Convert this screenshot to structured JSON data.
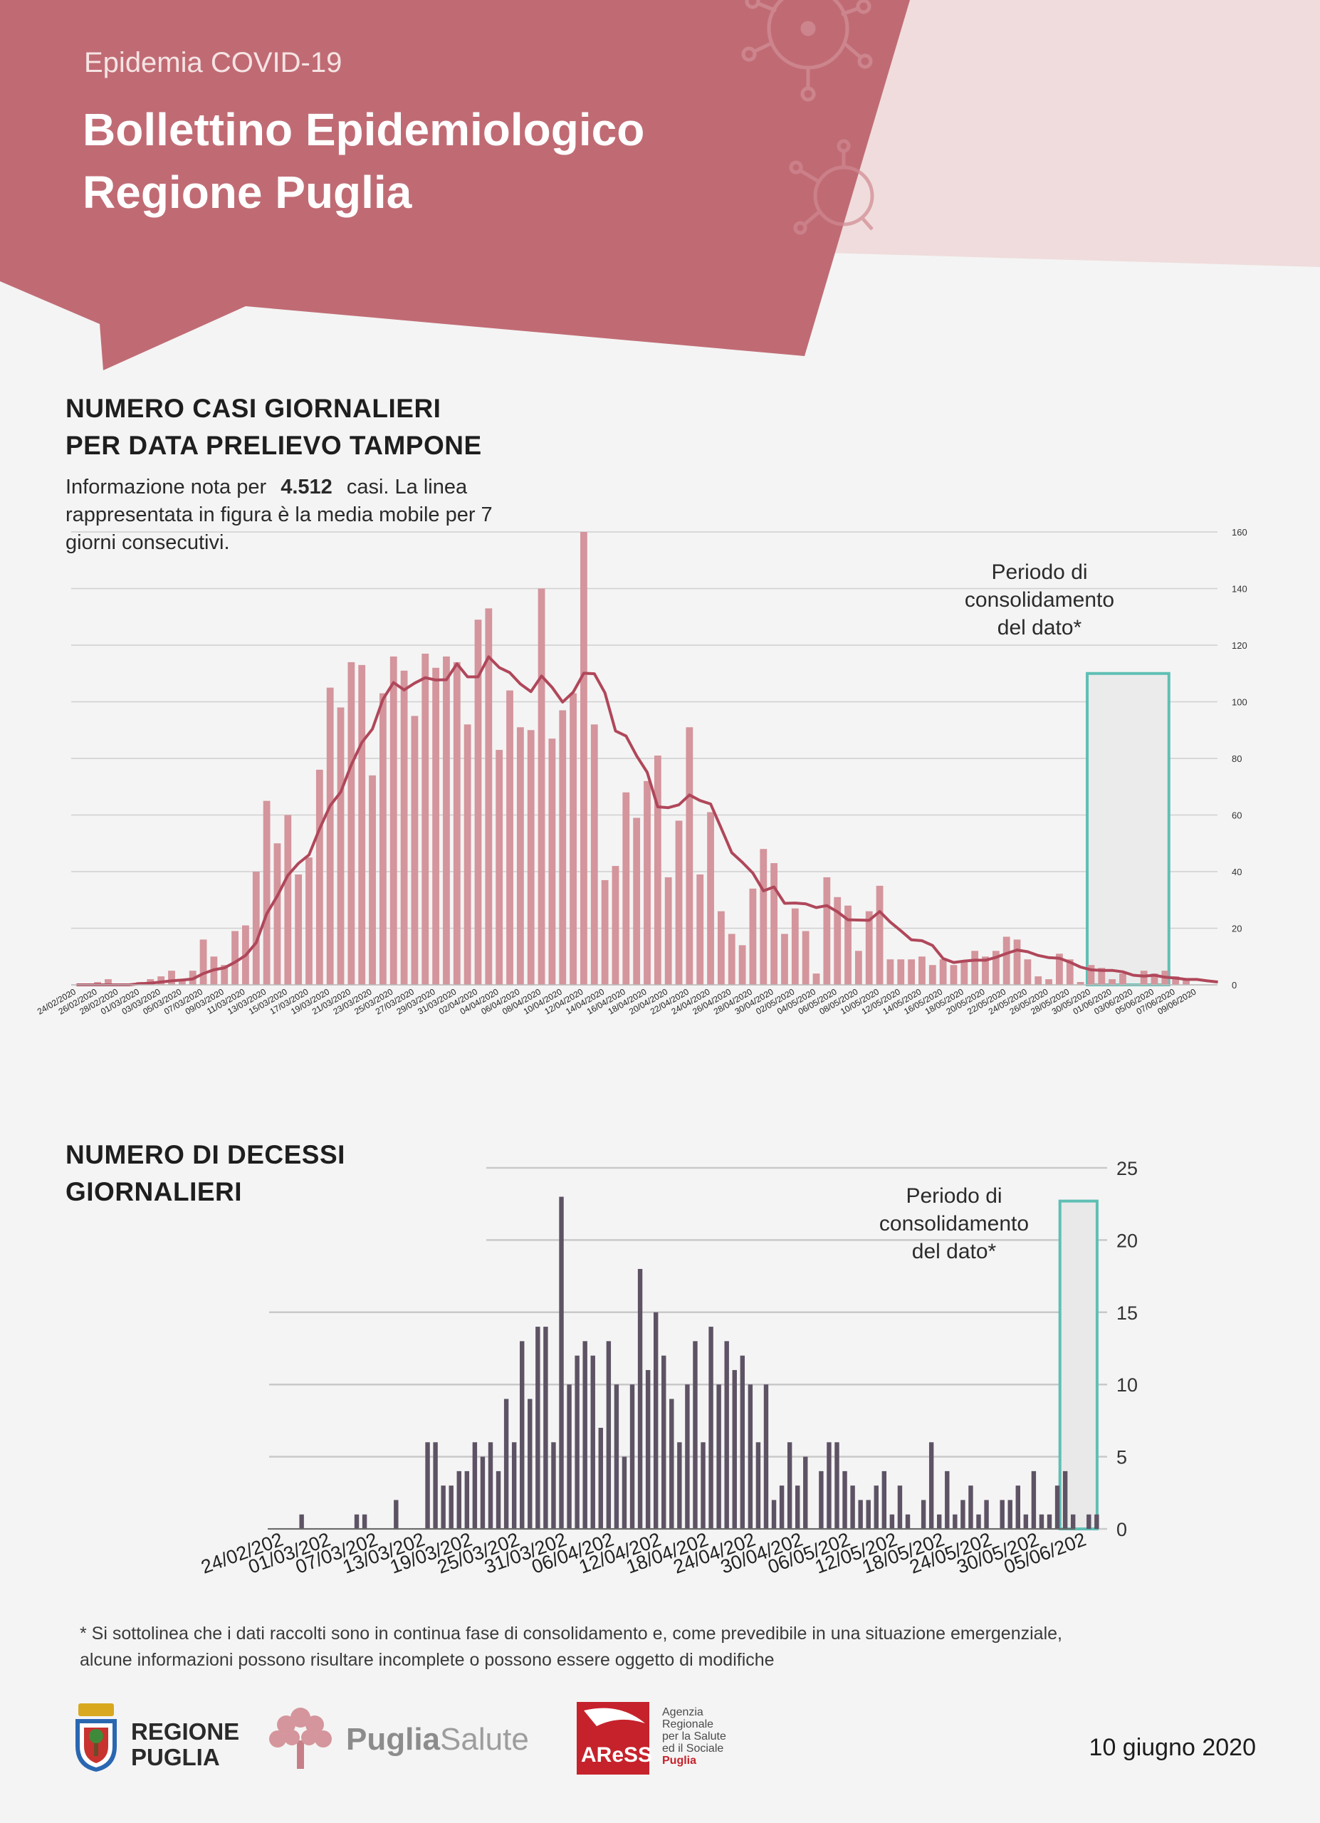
{
  "header": {
    "supertitle": "Epidemia COVID-19",
    "title_line1": "Bollettino Epidemiologico",
    "title_line2": "Regione Puglia"
  },
  "cases_section": {
    "title_line1": "NUMERO CASI GIORNALIERI",
    "title_line2": "PER DATA PRELIEVO TAMPONE",
    "desc_before": "Informazione nota per",
    "desc_number": "4.512",
    "desc_after": "casi. La linea",
    "desc_line2": "rappresentata in figura è la media mobile per 7",
    "desc_line3": "giorni consecutivi.",
    "annotation_line1": "Periodo di",
    "annotation_line2": "consolidamento",
    "annotation_line3": "del dato*"
  },
  "deaths_section": {
    "title_line1": "NUMERO DI DECESSI",
    "title_line2": "GIORNALIERI",
    "annotation_line1": "Periodo di",
    "annotation_line2": "consolidamento",
    "annotation_line3": "del dato*"
  },
  "footnote": {
    "line1": "* Si sottolinea che i dati raccolti sono in continua fase di consolidamento e, come prevedibile in una situazione emergenziale,",
    "line2": "alcune informazioni possono risultare incomplete o possono essere oggetto di modifiche"
  },
  "logos": {
    "regione_line1": "REGIONE",
    "regione_line2": "PUGLIA",
    "puglia": "Puglia",
    "salute": "Salute",
    "aress": "AReSS",
    "agency_line1": "Agenzia",
    "agency_line2": "Regionale",
    "agency_line3": "per la Salute",
    "agency_line4": "ed il Sociale",
    "agency_line5": "Puglia"
  },
  "date": "10 giugno 2020",
  "colors": {
    "header": "#c06b74",
    "header_light": "#f0dcdc",
    "cases_bar": "#d4959c",
    "moving_average": "#b0475a",
    "deaths_bar": "#5d5364",
    "consolidation_box": "#5fbfb4"
  },
  "chart_data": [
    {
      "type": "bar",
      "y_axis_position": "right",
      "ylim": [
        0,
        160
      ],
      "y_ticks": [
        0,
        20,
        40,
        60,
        80,
        100,
        120,
        140,
        160
      ],
      "x_tick_labels": [
        "24/02/2020",
        "26/02/2020",
        "28/02/2020",
        "01/03/2020",
        "03/03/2020",
        "05/03/2020",
        "07/03/2020",
        "09/03/2020",
        "11/03/2020",
        "13/03/2020",
        "15/03/2020",
        "17/03/2020",
        "19/03/2020",
        "21/03/2020",
        "23/03/2020",
        "25/03/2020",
        "27/03/2020",
        "29/03/2020",
        "31/03/2020",
        "02/04/2020",
        "04/04/2020",
        "06/04/2020",
        "08/04/2020",
        "10/04/2020",
        "12/04/2020",
        "14/04/2020",
        "16/04/2020",
        "18/04/2020",
        "20/04/2020",
        "22/04/2020",
        "24/04/2020",
        "26/04/2020",
        "28/04/2020",
        "30/04/2020",
        "02/05/2020",
        "04/05/2020",
        "06/05/2020",
        "08/05/2020",
        "10/05/2020",
        "12/05/2020",
        "14/05/2020",
        "16/05/2020",
        "18/05/2020",
        "20/05/2020",
        "22/05/2020",
        "24/05/2020",
        "26/05/2020",
        "28/05/2020",
        "30/05/2020",
        "01/06/2020",
        "03/06/2020",
        "05/06/2020",
        "07/06/2020",
        "09/06/2020"
      ],
      "series": [
        {
          "kind": "bar",
          "values": [
            0,
            0,
            1,
            2,
            0,
            0,
            1,
            2,
            3,
            5,
            2,
            5,
            16,
            10,
            7,
            19,
            21,
            40,
            65,
            50,
            60,
            39,
            45,
            76,
            105,
            98,
            114,
            113,
            74,
            103,
            116,
            111,
            95,
            117,
            112,
            116,
            114,
            92,
            129,
            133,
            83,
            104,
            91,
            90,
            140,
            87,
            97,
            103,
            160,
            92,
            37,
            42,
            68,
            59,
            72,
            81,
            38,
            58,
            91,
            39,
            61,
            26,
            18,
            14,
            34,
            48,
            43,
            18,
            27,
            19,
            4,
            38,
            31,
            28,
            12,
            26,
            35,
            9,
            9,
            9,
            10,
            7,
            9,
            7,
            8,
            12,
            10,
            12,
            17,
            16,
            9,
            3,
            2,
            11,
            9,
            1,
            7,
            6,
            2,
            4,
            0,
            5,
            4,
            5,
            3,
            2,
            0,
            0,
            0
          ]
        },
        {
          "kind": "line",
          "values": [
            0,
            0,
            0,
            0,
            0,
            0,
            0.4,
            0.6,
            1,
            1.4,
            1.7,
            2.1,
            4,
            5.3,
            6,
            8,
            10.4,
            14.9,
            25.1,
            31.4,
            38.7,
            42.9,
            45.9,
            55.1,
            63.3,
            68.1,
            77.7,
            85.6,
            90.4,
            100.9,
            106.8,
            104.2,
            106.6,
            108.5,
            107.7,
            107.8,
            113.4,
            108.8,
            108.8,
            115.9,
            112.1,
            110.3,
            106.3,
            103.6,
            109.1,
            105.1,
            99.9,
            103.4,
            110.1,
            109.9,
            103.2,
            89.7,
            87.9,
            80.9,
            75.1,
            62.9,
            62.6,
            63.6,
            67.1,
            65.1,
            63.9,
            55.4,
            46.7,
            43.3,
            39.5,
            33.2,
            34.6,
            28.8,
            28.9,
            28.6,
            27.3,
            28,
            25.8,
            23,
            22.9,
            22.8,
            25.9,
            22.2,
            19.1,
            15.9,
            15.6,
            13.9,
            9.3,
            7.9,
            8.4,
            8.7,
            8.7,
            9.7,
            11.1,
            12.3,
            11.7,
            10.4,
            9.6,
            9.4,
            8,
            6.3,
            5.3,
            5.1,
            5.1,
            4.6,
            3.4,
            3.1,
            3.4,
            2.7,
            2.4,
            1.9,
            1.9,
            1.4,
            1
          ]
        }
      ],
      "consolidation_period": {
        "from_index": 96,
        "to_index": 104
      }
    },
    {
      "type": "bar",
      "y_axis_position": "right",
      "ylim": [
        0,
        25
      ],
      "y_ticks": [
        0,
        5,
        10,
        15,
        20,
        25
      ],
      "x_tick_labels": [
        "24/02/202",
        "01/03/202",
        "07/03/202",
        "13/03/202",
        "19/03/202",
        "25/03/202",
        "31/03/202",
        "06/04/202",
        "12/04/202",
        "18/04/202",
        "24/04/202",
        "30/04/202",
        "06/05/202",
        "12/05/202",
        "18/05/202",
        "24/05/202",
        "30/05/202",
        "05/06/202"
      ],
      "series": [
        {
          "kind": "bar",
          "values": [
            0,
            0,
            0,
            0,
            1,
            0,
            0,
            0,
            0,
            0,
            0,
            1,
            1,
            0,
            0,
            0,
            2,
            0,
            0,
            0,
            6,
            6,
            3,
            3,
            4,
            4,
            6,
            5,
            6,
            4,
            9,
            6,
            13,
            9,
            14,
            14,
            6,
            23,
            10,
            12,
            13,
            12,
            7,
            13,
            10,
            5,
            10,
            18,
            11,
            15,
            12,
            9,
            6,
            10,
            13,
            6,
            14,
            10,
            13,
            11,
            12,
            10,
            6,
            10,
            2,
            3,
            6,
            3,
            5,
            0,
            4,
            6,
            6,
            4,
            3,
            2,
            2,
            3,
            4,
            1,
            3,
            1,
            0,
            2,
            6,
            1,
            4,
            1,
            2,
            3,
            1,
            2,
            0,
            2,
            2,
            3,
            1,
            4,
            1,
            1,
            3,
            4,
            1,
            0,
            1,
            1
          ]
        }
      ],
      "consolidation_period": {
        "from_index": 101,
        "to_index": 105
      }
    }
  ]
}
